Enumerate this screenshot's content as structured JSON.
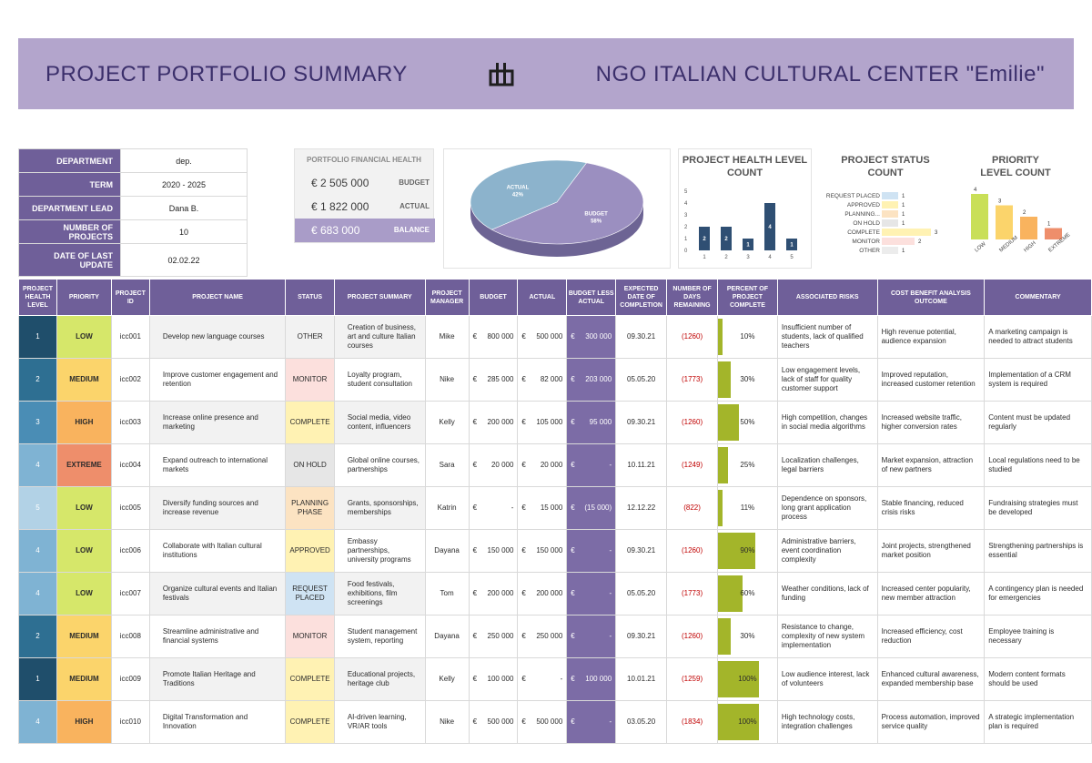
{
  "banner": {
    "title": "PROJECT PORTFOLIO SUMMARY",
    "org": "NGO ITALIAN CULTURAL CENTER  \"Emilie\""
  },
  "info": {
    "department_label": "DEPARTMENT",
    "department": "dep.",
    "term_label": "TERM",
    "term": "2020 - 2025",
    "lead_label": "DEPARTMENT LEAD",
    "lead": "Dana B.",
    "projects_label": "NUMBER OF PROJECTS",
    "projects": "10",
    "update_label": "DATE OF LAST UPDATE",
    "update": "02.02.22"
  },
  "finance": {
    "title": "PORTFOLIO FINANCIAL HEALTH",
    "budget": "€  2 505 000",
    "budget_label": "BUDGET",
    "actual": "€  1 822 000",
    "actual_label": "ACTUAL",
    "balance": "€    683 000",
    "balance_label": "BALANCE"
  },
  "colors": {
    "header": "#6f5f99",
    "banner": "#b3a5cc",
    "budget_slice": "#9b8fc0",
    "actual_slice": "#8cb3cc",
    "bar": "#2f4f73",
    "progress": "#a3b52a"
  },
  "chart_data": [
    {
      "type": "pie",
      "title": "",
      "slices": [
        {
          "label": "BUDGET",
          "value": 58,
          "display": "58%",
          "color": "#9b8fc0"
        },
        {
          "label": "ACTUAL",
          "value": 42,
          "display": "42%",
          "color": "#8cb3cc"
        }
      ]
    },
    {
      "type": "bar",
      "title": "PROJECT HEALTH LEVEL COUNT",
      "categories": [
        "1",
        "2",
        "3",
        "4",
        "5"
      ],
      "values": [
        2,
        2,
        1,
        4,
        1
      ],
      "yticks": [
        "0",
        "1",
        "2",
        "3",
        "4",
        "5"
      ],
      "ylim": [
        0,
        5
      ]
    },
    {
      "type": "bar",
      "orientation": "horizontal",
      "title": "PROJECT STATUS COUNT",
      "categories": [
        "REQUEST PLACED",
        "APPROVED",
        "PLANNING...",
        "ON HOLD",
        "COMPLETE",
        "MONITOR",
        "OTHER"
      ],
      "values": [
        1,
        1,
        1,
        1,
        3,
        2,
        1
      ],
      "colors": [
        "#cfe3f3",
        "#fff2b3",
        "#fce3c2",
        "#e6e6e6",
        "#fff2b3",
        "#fce0dd",
        "#ececec"
      ]
    },
    {
      "type": "bar",
      "title": "PRIORITY LEVEL COUNT",
      "categories": [
        "LOW",
        "MEDIUM",
        "HIGH",
        "EXTREME"
      ],
      "values": [
        4,
        3,
        2,
        1
      ],
      "colors": [
        "#c9df58",
        "#fbd46b",
        "#f9b35e",
        "#ee8e6b"
      ]
    }
  ],
  "table": {
    "headers": [
      "PROJECT HEALTH LEVEL",
      "PRIORITY",
      "PROJECT ID",
      "PROJECT NAME",
      "STATUS",
      "PROJECT SUMMARY",
      "PROJECT MANAGER",
      "BUDGET",
      "ACTUAL",
      "BUDGET LESS ACTUAL",
      "EXPECTED DATE OF COMPLETION",
      "NUMBER OF DAYS REMAINING",
      "PERCENT OF PROJECT COMPLETE",
      "ASSOCIATED RISKS",
      "COST BENEFIT ANALYSIS OUTCOME",
      "COMMENTARY"
    ],
    "rows": [
      {
        "health": "1",
        "hcolor": "#1f4e6b",
        "priority": "LOW",
        "pcolor": "#d6e76a",
        "id": "icc001",
        "name": "Develop new language courses",
        "status": "OTHER",
        "scolor": "#f2f2f2",
        "summary": "Creation of business, art and culture Italian courses",
        "manager": "Mike",
        "budget": "800 000",
        "actual": "500 000",
        "less": "300 000",
        "date": "09.30.21",
        "days": "(1260)",
        "pct": 10,
        "pct_label": "10%",
        "risks": "Insufficient number of students, lack of qualified teachers",
        "cba": "High revenue potential, audience expansion",
        "comment": "A marketing campaign is needed to attract students"
      },
      {
        "health": "2",
        "hcolor": "#2e6f92",
        "priority": "MEDIUM",
        "pcolor": "#fbd46b",
        "id": "icc002",
        "name": "Improve customer engagement and retention",
        "status": "MONITOR",
        "scolor": "#fce0dd",
        "summary": "Loyalty program, student consultation",
        "manager": "Nike",
        "budget": "285 000",
        "actual": "82 000",
        "less": "203 000",
        "date": "05.05.20",
        "days": "(1773)",
        "pct": 30,
        "pct_label": "30%",
        "risks": "Low engagement levels, lack of staff for quality customer support",
        "cba": "Improved reputation, increased customer retention",
        "comment": "Implementation of a CRM system is required"
      },
      {
        "health": "3",
        "hcolor": "#4a8db5",
        "priority": "HIGH",
        "pcolor": "#f9b35e",
        "id": "icc003",
        "name": "Increase online presence and marketing",
        "status": "COMPLETE",
        "scolor": "#fff2b3",
        "summary": "Social media, video content, influencers",
        "manager": "Kelly",
        "budget": "200 000",
        "actual": "105 000",
        "less": "95 000",
        "date": "09.30.21",
        "days": "(1260)",
        "pct": 50,
        "pct_label": "50%",
        "risks": "High competition, changes in social media algorithms",
        "cba": "Increased website traffic, higher conversion rates",
        "comment": "Content must be updated regularly"
      },
      {
        "health": "4",
        "hcolor": "#7fb3d3",
        "priority": "EXTREME",
        "pcolor": "#ee8e6b",
        "id": "icc004",
        "name": "Expand outreach to international markets",
        "status": "ON HOLD",
        "scolor": "#e6e6e6",
        "summary": "Global online courses, partnerships",
        "manager": "Sara",
        "budget": "20 000",
        "actual": "20 000",
        "less": "-",
        "date": "10.11.21",
        "days": "(1249)",
        "pct": 25,
        "pct_label": "25%",
        "risks": "Localization challenges, legal barriers",
        "cba": "Market expansion, attraction of new partners",
        "comment": "Local regulations need to be studied"
      },
      {
        "health": "5",
        "hcolor": "#b2d2e6",
        "priority": "LOW",
        "pcolor": "#d6e76a",
        "id": "icc005",
        "name": "Diversify funding sources and increase revenue",
        "status": "PLANNING PHASE",
        "scolor": "#fce3c2",
        "summary": "Grants, sponsorships, memberships",
        "manager": "Katrin",
        "budget": "-",
        "actual": "15 000",
        "less": "(15 000)",
        "date": "12.12.22",
        "days": "(822)",
        "pct": 11,
        "pct_label": "11%",
        "risks": "Dependence on sponsors, long grant application process",
        "cba": "Stable financing, reduced crisis risks",
        "comment": "Fundraising strategies must be developed"
      },
      {
        "health": "4",
        "hcolor": "#7fb3d3",
        "priority": "LOW",
        "pcolor": "#d6e76a",
        "id": "icc006",
        "name": "Collaborate with Italian cultural institutions",
        "status": "APPROVED",
        "scolor": "#fff2b3",
        "summary": "Embassy partnerships, university programs",
        "manager": "Dayana",
        "budget": "150 000",
        "actual": "150 000",
        "less": "-",
        "date": "09.30.21",
        "days": "(1260)",
        "pct": 90,
        "pct_label": "90%",
        "risks": "Administrative barriers, event coordination complexity",
        "cba": "Joint projects, strengthened market position",
        "comment": "Strengthening partnerships is essential"
      },
      {
        "health": "4",
        "hcolor": "#7fb3d3",
        "priority": "LOW",
        "pcolor": "#d6e76a",
        "id": "icc007",
        "name": "Organize cultural events and Italian festivals",
        "status": "REQUEST PLACED",
        "scolor": "#cfe3f3",
        "summary": "Food festivals, exhibitions, film screenings",
        "manager": "Tom",
        "budget": "200 000",
        "actual": "200 000",
        "less": "-",
        "date": "05.05.20",
        "days": "(1773)",
        "pct": 60,
        "pct_label": "60%",
        "risks": "Weather conditions, lack of funding",
        "cba": "Increased center popularity, new member attraction",
        "comment": "A contingency plan is needed for emergencies"
      },
      {
        "health": "2",
        "hcolor": "#2e6f92",
        "priority": "MEDIUM",
        "pcolor": "#fbd46b",
        "id": "icc008",
        "name": "Streamline administrative and financial systems",
        "status": "MONITOR",
        "scolor": "#fce0dd",
        "summary": "Student management system, reporting",
        "manager": "Dayana",
        "budget": "250 000",
        "actual": "250 000",
        "less": "-",
        "date": "09.30.21",
        "days": "(1260)",
        "pct": 30,
        "pct_label": "30%",
        "risks": "Resistance to change, complexity of new system implementation",
        "cba": "Increased efficiency, cost reduction",
        "comment": "Employee training is necessary"
      },
      {
        "health": "1",
        "hcolor": "#1f4e6b",
        "priority": "MEDIUM",
        "pcolor": "#fbd46b",
        "id": "icc009",
        "name": "Promote Italian Heritage and Traditions",
        "status": "COMPLETE",
        "scolor": "#fff2b3",
        "summary": "Educational projects, heritage club",
        "manager": "Kelly",
        "budget": "100 000",
        "actual": "-",
        "less": "100 000",
        "date": "10.01.21",
        "days": "(1259)",
        "pct": 100,
        "pct_label": "100%",
        "risks": "Low audience interest, lack of volunteers",
        "cba": "Enhanced cultural awareness, expanded membership base",
        "comment": "Modern content formats should be used"
      },
      {
        "health": "4",
        "hcolor": "#7fb3d3",
        "priority": "HIGH",
        "pcolor": "#f9b35e",
        "id": "icc010",
        "name": "Digital Transformation and Innovation",
        "status": "COMPLETE",
        "scolor": "#fff2b3",
        "summary": "AI-driven learning, VR/AR tools",
        "manager": "Nike",
        "budget": "500 000",
        "actual": "500 000",
        "less": "-",
        "date": "03.05.20",
        "days": "(1834)",
        "pct": 100,
        "pct_label": "100%",
        "risks": "High technology costs, integration challenges",
        "cba": "Process automation, improved service quality",
        "comment": "A strategic implementation plan is required"
      }
    ],
    "currency": "€"
  }
}
